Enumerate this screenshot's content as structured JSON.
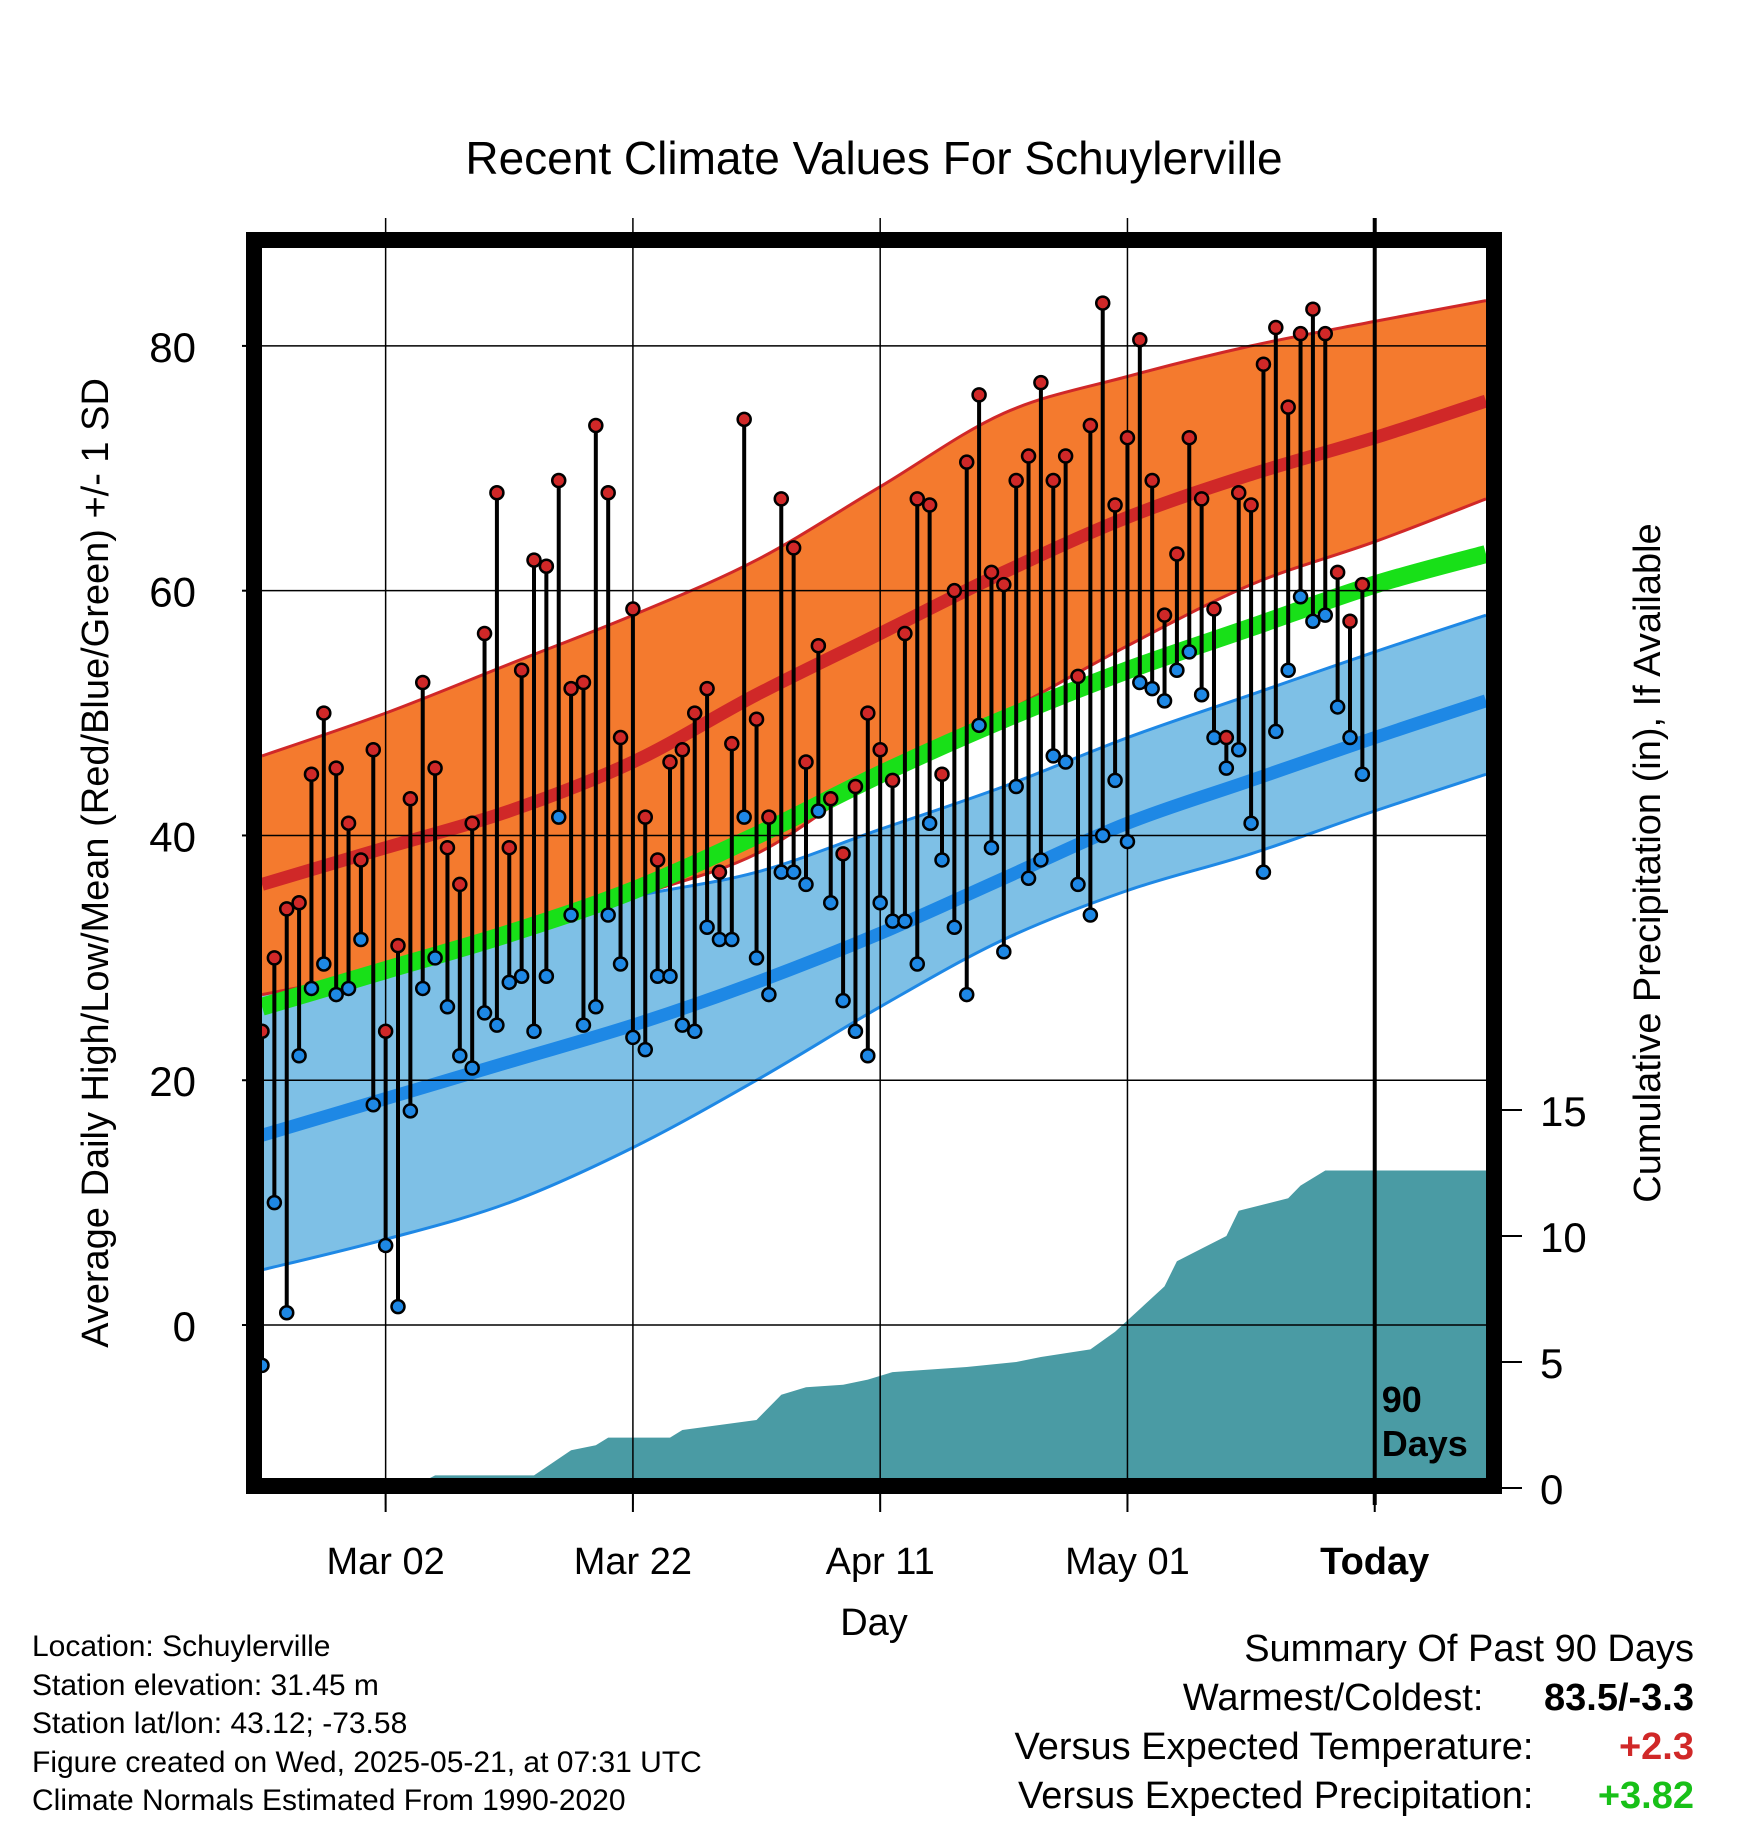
{
  "chart_data": {
    "type": "line",
    "title": "Recent Climate Values For Schuylerville",
    "xlabel": "Day",
    "ylabel_left": "Average Daily High/Low/Mean (Red/Blue/Green) +/- 1 SD",
    "ylabel_right": "Cumulative Precipitation (in), If Available",
    "x_range": [
      "2025-02-20",
      "2025-05-30"
    ],
    "ylim_left": [
      -12.5,
      88
    ],
    "ylim_right": [
      0,
      15
    ],
    "x_ticks": [
      {
        "date": "2025-03-02",
        "label": "Mar 02"
      },
      {
        "date": "2025-03-22",
        "label": "Mar 22"
      },
      {
        "date": "2025-04-11",
        "label": "Apr 11"
      },
      {
        "date": "2025-05-01",
        "label": "May 01"
      },
      {
        "date": "2025-05-21",
        "label": "Today"
      }
    ],
    "y_ticks_left": [
      0,
      20,
      40,
      60,
      80
    ],
    "y_ticks_right": [
      0,
      5,
      10,
      15
    ],
    "today_date": "2025-05-21",
    "today_annotation": [
      "90",
      "Days"
    ],
    "colors": {
      "high_band": "#f47a2e",
      "high_line": "#d02828",
      "low_band": "#7ec0e6",
      "low_line": "#1e88e5",
      "mean_line": "#18e018",
      "precip": "#4a9ba4",
      "high_dot": "#d02828",
      "low_dot": "#1e88e5"
    },
    "normals": {
      "dates": [
        "2025-02-20",
        "2025-03-02",
        "2025-03-12",
        "2025-03-22",
        "2025-04-01",
        "2025-04-11",
        "2025-04-21",
        "2025-05-01",
        "2025-05-11",
        "2025-05-21",
        "2025-05-30"
      ],
      "high_mean": [
        36.0,
        39.0,
        42.0,
        46.0,
        51.5,
        56.5,
        61.5,
        66.0,
        69.5,
        72.5,
        75.5
      ],
      "high_upper": [
        46.5,
        50.0,
        54.0,
        58.0,
        62.5,
        68.5,
        74.5,
        77.5,
        80.0,
        82.0,
        83.7
      ],
      "high_lower": [
        27.0,
        29.0,
        31.5,
        35.0,
        38.5,
        45.0,
        50.0,
        55.5,
        60.5,
        64.0,
        67.5
      ],
      "low_mean": [
        15.5,
        18.5,
        21.5,
        24.5,
        28.0,
        32.0,
        36.5,
        41.0,
        44.5,
        48.0,
        51.0
      ],
      "low_upper": [
        28.0,
        30.5,
        32.5,
        35.0,
        37.0,
        40.5,
        44.0,
        48.0,
        51.5,
        55.0,
        58.0
      ],
      "low_lower": [
        4.5,
        7.0,
        10.0,
        14.5,
        20.0,
        26.0,
        31.5,
        35.5,
        38.5,
        42.0,
        45.0
      ],
      "mean": [
        26.0,
        29.0,
        32.0,
        35.5,
        40.0,
        45.0,
        49.5,
        53.5,
        57.0,
        60.5,
        63.0
      ]
    },
    "daily": {
      "start_date": "2025-02-20",
      "high": [
        24.0,
        30.0,
        34.0,
        34.5,
        45.0,
        50.0,
        45.5,
        41.0,
        38.0,
        47.0,
        24.0,
        31.0,
        43.0,
        52.5,
        45.5,
        39.0,
        36.0,
        41.0,
        56.5,
        68.0,
        39.0,
        53.5,
        62.5,
        62.0,
        69.0,
        52.0,
        52.5,
        73.5,
        68.0,
        48.0,
        58.5,
        41.5,
        38.0,
        46.0,
        47.0,
        50.0,
        52.0,
        37.0,
        47.5,
        74.0,
        49.5,
        41.5,
        67.5,
        63.5,
        46.0,
        55.5,
        43.0,
        38.5,
        44.0,
        50.0,
        47.0,
        44.5,
        56.5,
        67.5,
        67.0,
        45.0,
        60.0,
        70.5,
        76.0,
        61.5,
        60.5,
        69.0,
        71.0,
        77.0,
        69.0,
        71.0,
        53.0,
        73.5,
        83.5,
        67.0,
        72.5,
        80.5,
        69.0,
        58.0,
        63.0,
        72.5,
        67.5,
        58.5,
        48.0,
        68.0,
        67.0,
        78.5,
        81.5,
        75.0,
        81.0,
        83.0,
        81.0,
        61.5,
        57.5,
        60.5
      ],
      "low": [
        -3.3,
        10.0,
        1.0,
        22.0,
        27.5,
        29.5,
        27.0,
        27.5,
        31.5,
        18.0,
        6.5,
        1.5,
        17.5,
        27.5,
        30.0,
        26.0,
        22.0,
        21.0,
        25.5,
        24.5,
        28.0,
        28.5,
        24.0,
        28.5,
        41.5,
        33.5,
        24.5,
        26.0,
        33.5,
        29.5,
        23.5,
        22.5,
        28.5,
        28.5,
        24.5,
        24.0,
        32.5,
        31.5,
        31.5,
        41.5,
        30.0,
        27.0,
        37.0,
        37.0,
        36.0,
        42.0,
        34.5,
        26.5,
        24.0,
        22.0,
        34.5,
        33.0,
        33.0,
        29.5,
        41.0,
        38.0,
        32.5,
        27.0,
        49.0,
        39.0,
        30.5,
        44.0,
        36.5,
        38.0,
        46.5,
        46.0,
        36.0,
        33.5,
        40.0,
        44.5,
        39.5,
        52.5,
        52.0,
        51.0,
        53.5,
        55.0,
        51.5,
        48.0,
        45.5,
        47.0,
        41.0,
        37.0,
        48.5,
        53.5,
        59.5,
        57.5,
        58.0,
        50.5,
        48.0,
        45.0
      ]
    },
    "precipitation": {
      "dates": [
        "2025-03-04",
        "2025-03-06",
        "2025-03-14",
        "2025-03-17",
        "2025-03-19",
        "2025-03-20",
        "2025-03-22",
        "2025-03-25",
        "2025-03-26",
        "2025-03-29",
        "2025-04-01",
        "2025-04-02",
        "2025-04-03",
        "2025-04-05",
        "2025-04-08",
        "2025-04-10",
        "2025-04-12",
        "2025-04-18",
        "2025-04-22",
        "2025-04-24",
        "2025-04-28",
        "2025-04-30",
        "2025-05-04",
        "2025-05-05",
        "2025-05-07",
        "2025-05-09",
        "2025-05-10",
        "2025-05-14",
        "2025-05-15",
        "2025-05-17",
        "2025-05-30"
      ],
      "values": [
        0.0,
        0.5,
        0.5,
        1.5,
        1.7,
        2.0,
        2.0,
        2.0,
        2.3,
        2.5,
        2.7,
        3.2,
        3.7,
        4.0,
        4.1,
        4.3,
        4.6,
        4.8,
        5.0,
        5.2,
        5.5,
        6.2,
        8.0,
        9.0,
        9.5,
        10.0,
        11.0,
        11.5,
        12.0,
        12.6,
        12.6
      ]
    }
  },
  "footer_left": {
    "location": "Location: Schuylerville",
    "elevation": "Station elevation: 31.45 m",
    "latlon": "Station lat/lon: 43.12; -73.58",
    "created": "Figure created on Wed, 2025-05-21, at 07:31 UTC",
    "normals": "Climate Normals Estimated From 1990-2020"
  },
  "summary": {
    "title": "Summary Of Past 90 Days",
    "warmest_label": "Warmest/Coldest:",
    "warmest_value": "83.5/-3.3",
    "temp_label": "Versus Expected Temperature:",
    "temp_value": "+2.3",
    "temp_color": "#d02828",
    "precip_label": "Versus Expected Precipitation:",
    "precip_value": "+3.82",
    "precip_color": "#18c018"
  }
}
